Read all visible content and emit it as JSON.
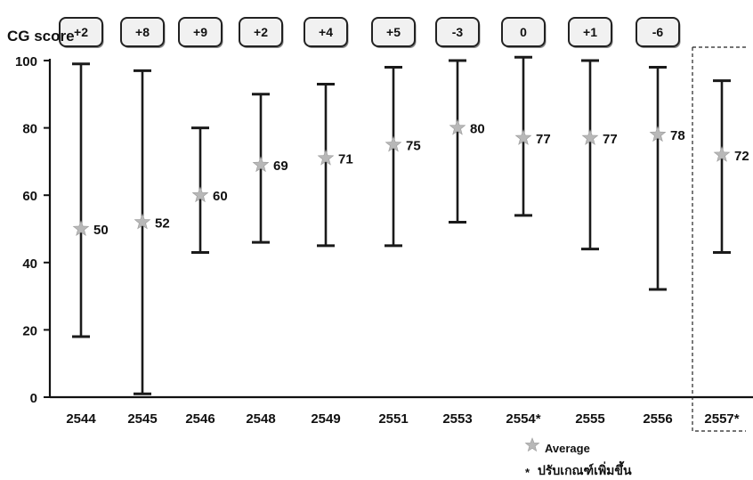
{
  "cg_score_label": "CG score",
  "chart_data": {
    "type": "errorbar",
    "title": "",
    "xlabel": "",
    "ylabel": "",
    "ylim": [
      0,
      100
    ],
    "yticks": [
      0,
      20,
      40,
      60,
      80,
      100
    ],
    "grid": false,
    "categories": [
      "2544",
      "2545",
      "2546",
      "2548",
      "2549",
      "2551",
      "2553",
      "2554*",
      "2555",
      "2556",
      "2557*"
    ],
    "average": [
      50,
      52,
      60,
      69,
      71,
      75,
      80,
      77,
      77,
      78,
      72
    ],
    "average_labels": [
      "50",
      "52",
      "60",
      "69",
      "71",
      "75",
      "80",
      "77",
      "77",
      "78",
      "72"
    ],
    "min": [
      18,
      1,
      43,
      46,
      45,
      45,
      52,
      54,
      44,
      32,
      43
    ],
    "max": [
      99,
      97,
      80,
      90,
      93,
      98,
      100,
      101,
      100,
      98,
      94
    ],
    "cg_score": [
      "+2",
      "+8",
      "+9",
      "+2",
      "+4",
      "+5",
      "-3",
      "0",
      "+1",
      "-6",
      ""
    ],
    "highlighted_category": "2557*",
    "legend": {
      "average_label": "Average",
      "footnote_marker": "*",
      "footnote_text": "ปรับเกณฑ์เพิ่มขึ้น"
    },
    "colors": {
      "bar": "#1a1a1a",
      "star": "#b8b8b8",
      "badge_fill": "#f1f1f1",
      "badge_stroke": "#222222"
    }
  }
}
